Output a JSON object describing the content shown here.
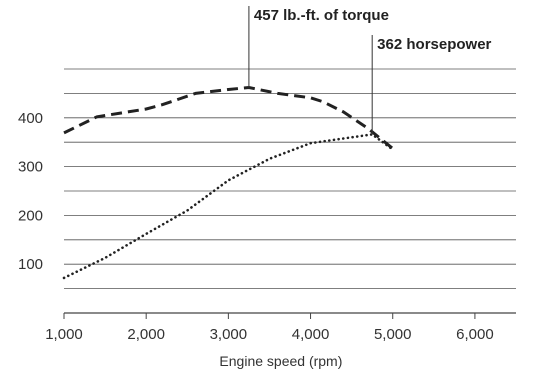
{
  "chart_data": {
    "type": "line",
    "title": "",
    "xlabel": "Engine speed (rpm)",
    "ylabel": "",
    "xlim": [
      1000,
      6500
    ],
    "ylim": [
      0,
      500
    ],
    "x_ticks": [
      1000,
      2000,
      3000,
      4000,
      5000,
      6000
    ],
    "x_tick_labels": [
      "1,000",
      "2,000",
      "3,000",
      "4,000",
      "5,000",
      "6,000"
    ],
    "y_ticks": [
      100,
      200,
      300,
      400
    ],
    "y_tick_labels": [
      "100",
      "200",
      "300",
      "400"
    ],
    "grid": "horizontal",
    "legend": "none",
    "series": [
      {
        "style": "dashed",
        "color": "#222222",
        "x": [
          1000,
          1400,
          2000,
          2200,
          2600,
          3000,
          3250,
          3600,
          4000,
          4150,
          4400,
          4700,
          5000
        ],
        "y": [
          369,
          402,
          418,
          427,
          450,
          458,
          462,
          450,
          441,
          433,
          412,
          378,
          337
        ]
      },
      {
        "style": "dotted",
        "color": "#222222",
        "x": [
          1000,
          1500,
          2000,
          2500,
          3000,
          3500,
          4000,
          4750,
          5000
        ],
        "y": [
          72,
          113,
          162,
          210,
          272,
          316,
          348,
          366,
          335
        ]
      }
    ],
    "annotations": [
      {
        "text": "457 lb.-ft. of torque",
        "x": 3250,
        "y": 462
      },
      {
        "text": "362 horsepower",
        "x": 4750,
        "y": 366
      }
    ]
  }
}
